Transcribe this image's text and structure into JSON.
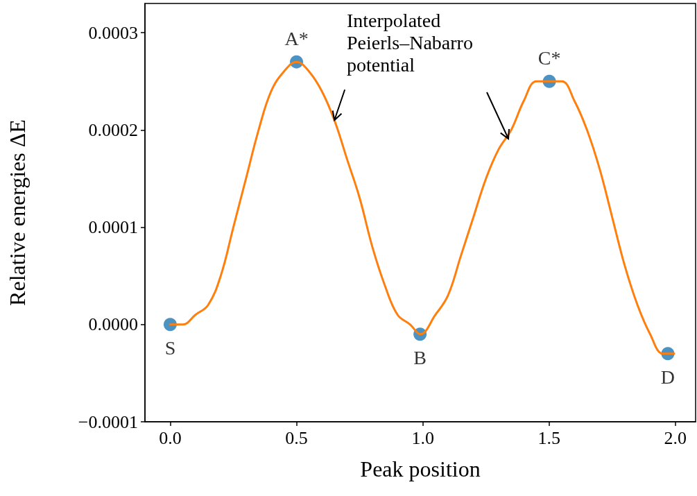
{
  "chart_data": {
    "type": "scatter",
    "xlabel": "Peak position",
    "ylabel": "Relative energies ΔE",
    "annotations": [
      {
        "text": "Interpolated\nPeierls–Nabarro\npotential",
        "x": 0.65,
        "y": 0.00021
      }
    ],
    "xlim": [
      -0.1,
      2.08
    ],
    "ylim": [
      -0.0001,
      0.00033
    ],
    "xticks": [
      {
        "value": 0,
        "label": "0.0"
      },
      {
        "value": 0.5,
        "label": "0.5"
      },
      {
        "value": 1,
        "label": "1.0"
      },
      {
        "value": 1.5,
        "label": "1.5"
      },
      {
        "value": 2,
        "label": "2.0"
      }
    ],
    "yticks": [
      {
        "value": -0.0001,
        "label": "−0.0001"
      },
      {
        "value": 0,
        "label": "0.0000"
      },
      {
        "value": 0.0001,
        "label": "0.0001"
      },
      {
        "value": 0.0002,
        "label": "0.0002"
      },
      {
        "value": 0.0003,
        "label": "0.0003"
      }
    ],
    "grid": false,
    "series": [
      {
        "type": "line",
        "color": "#ff7f0e",
        "marker": "none",
        "line_style": "solid",
        "x": [
          0,
          0.05,
          0.1,
          0.15,
          0.2,
          0.25,
          0.3,
          0.35,
          0.4,
          0.45,
          0.5,
          0.55,
          0.6,
          0.65,
          0.7,
          0.75,
          0.8,
          0.85,
          0.9,
          0.95,
          0.99,
          1.05,
          1.1,
          1.15,
          1.2,
          1.25,
          1.3,
          1.35,
          1.4,
          1.45,
          1.5,
          1.55,
          1.6,
          1.65,
          1.7,
          1.75,
          1.8,
          1.85,
          1.9,
          1.95,
          1.975,
          1.995
        ],
        "values": [
          0,
          0,
          1e-05,
          2e-05,
          5e-05,
          0.0001,
          0.00015,
          0.0002,
          0.00024,
          0.00026,
          0.00027,
          0.00026,
          0.00024,
          0.00021,
          0.00017,
          0.00013,
          8e-05,
          4e-05,
          1e-05,
          0,
          -1e-05,
          1e-05,
          3e-05,
          7e-05,
          0.00011,
          0.00015,
          0.00018,
          0.0002,
          0.00023,
          0.00025,
          0.00025,
          0.00025,
          0.00023,
          0.0002,
          0.00016,
          0.00011,
          6e-05,
          2e-05,
          -1e-05,
          -3e-05,
          -3e-05,
          -3e-05
        ]
      },
      {
        "color": "#1f77b4",
        "marker": "circle",
        "x": [
          0,
          0.5,
          0.989,
          1.501,
          1.97
        ],
        "values": [
          0,
          0.00027,
          -1e-05,
          0.00025,
          -3e-05
        ],
        "value_labels": [
          "S",
          "A*",
          "B",
          "C*",
          "D"
        ]
      }
    ]
  }
}
